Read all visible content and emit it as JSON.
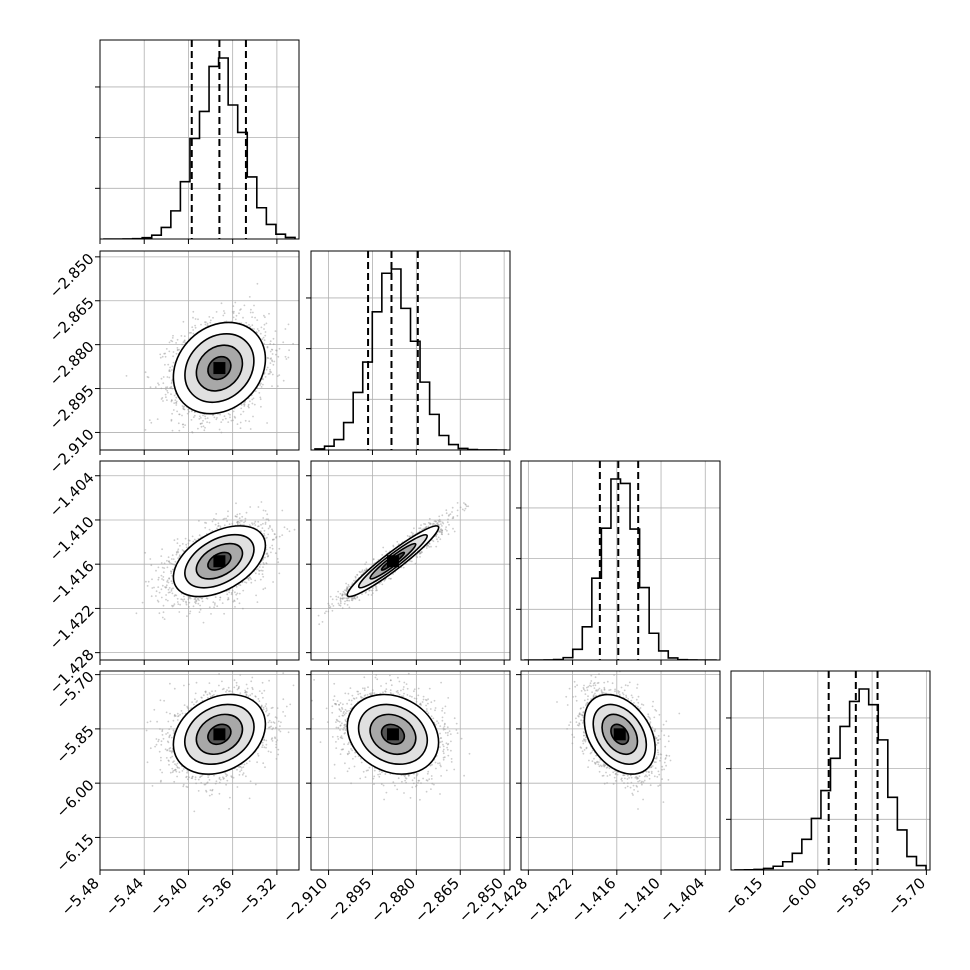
{
  "chart_data": {
    "type": "corner",
    "parameters": [
      {
        "ticks": [
          "−5.48",
          "−5.44",
          "−5.40",
          "−5.36",
          "−5.32"
        ],
        "tick_values": [
          -5.48,
          -5.44,
          -5.4,
          -5.36,
          -5.32
        ],
        "range": [
          -5.48,
          -5.3
        ],
        "quantiles": [
          -5.397,
          -5.372,
          -5.348
        ],
        "peak": -5.372,
        "sigma": 0.0208
      },
      {
        "ticks": [
          "−2.910",
          "−2.895",
          "−2.880",
          "−2.865",
          "−2.850"
        ],
        "tick_values": [
          -2.91,
          -2.895,
          -2.88,
          -2.865,
          -2.85
        ],
        "range": [
          -2.916,
          -2.848
        ],
        "quantiles": [
          -2.8965,
          -2.8885,
          -2.8795
        ],
        "peak": -2.888,
        "sigma": 0.0078
      },
      {
        "ticks": [
          "−1.428",
          "−1.422",
          "−1.416",
          "−1.410",
          "−1.404"
        ],
        "tick_values": [
          -1.428,
          -1.422,
          -1.416,
          -1.41,
          -1.404
        ],
        "range": [
          -1.429,
          -1.402
        ],
        "quantiles": [
          -1.4183,
          -1.4158,
          -1.4131
        ],
        "peak": -1.4156,
        "sigma": 0.0024
      },
      {
        "ticks": [
          "−6.15",
          "−6.00",
          "−5.85",
          "−5.70"
        ],
        "tick_values": [
          -6.15,
          -6.0,
          -5.85,
          -5.7
        ],
        "range": [
          -6.24,
          -5.69
        ],
        "quantiles": [
          -5.97,
          -5.895,
          -5.835
        ],
        "peak": -5.865,
        "sigma": 0.055
      }
    ],
    "correlations": [
      {
        "pair": [
          0,
          1
        ],
        "rho": 0.2
      },
      {
        "pair": [
          0,
          2
        ],
        "rho": 0.45
      },
      {
        "pair": [
          1,
          2
        ],
        "rho": 0.95
      },
      {
        "pair": [
          0,
          3
        ],
        "rho": 0.25
      },
      {
        "pair": [
          1,
          3
        ],
        "rho": -0.2
      },
      {
        "pair": [
          2,
          3
        ],
        "rho": -0.35
      }
    ],
    "histogram_bins": 20,
    "contour_levels": [
      "0.5σ",
      "1σ",
      "1.5σ",
      "2σ"
    ],
    "grid": true,
    "quantile_lines": "dashed",
    "samples_shown_as": "grey scatter points"
  }
}
